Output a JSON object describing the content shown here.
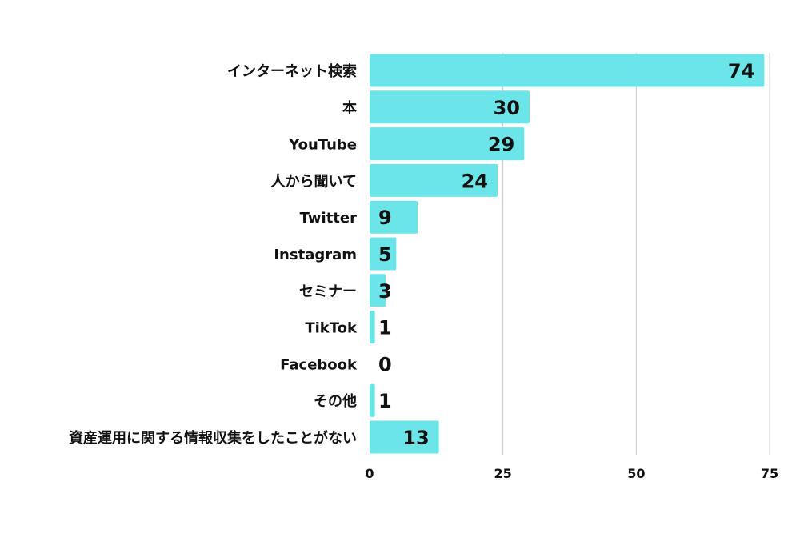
{
  "chart_data": {
    "type": "bar",
    "orientation": "horizontal",
    "categories": [
      "インターネット検索",
      "本",
      "YouTube",
      "人から聞いて",
      "Twitter",
      "Instagram",
      "セミナー",
      "TikTok",
      "Facebook",
      "その他",
      "資産運用に関する情報収集をしたことがない"
    ],
    "values": [
      74,
      30,
      29,
      24,
      9,
      5,
      3,
      1,
      0,
      1,
      13
    ],
    "xlim": [
      0,
      75
    ],
    "xticks": [
      "0",
      "25",
      "50",
      "75"
    ],
    "grid": "vertical",
    "bar_color": "#6ce5e8",
    "title": "",
    "xlabel": "",
    "ylabel": ""
  }
}
